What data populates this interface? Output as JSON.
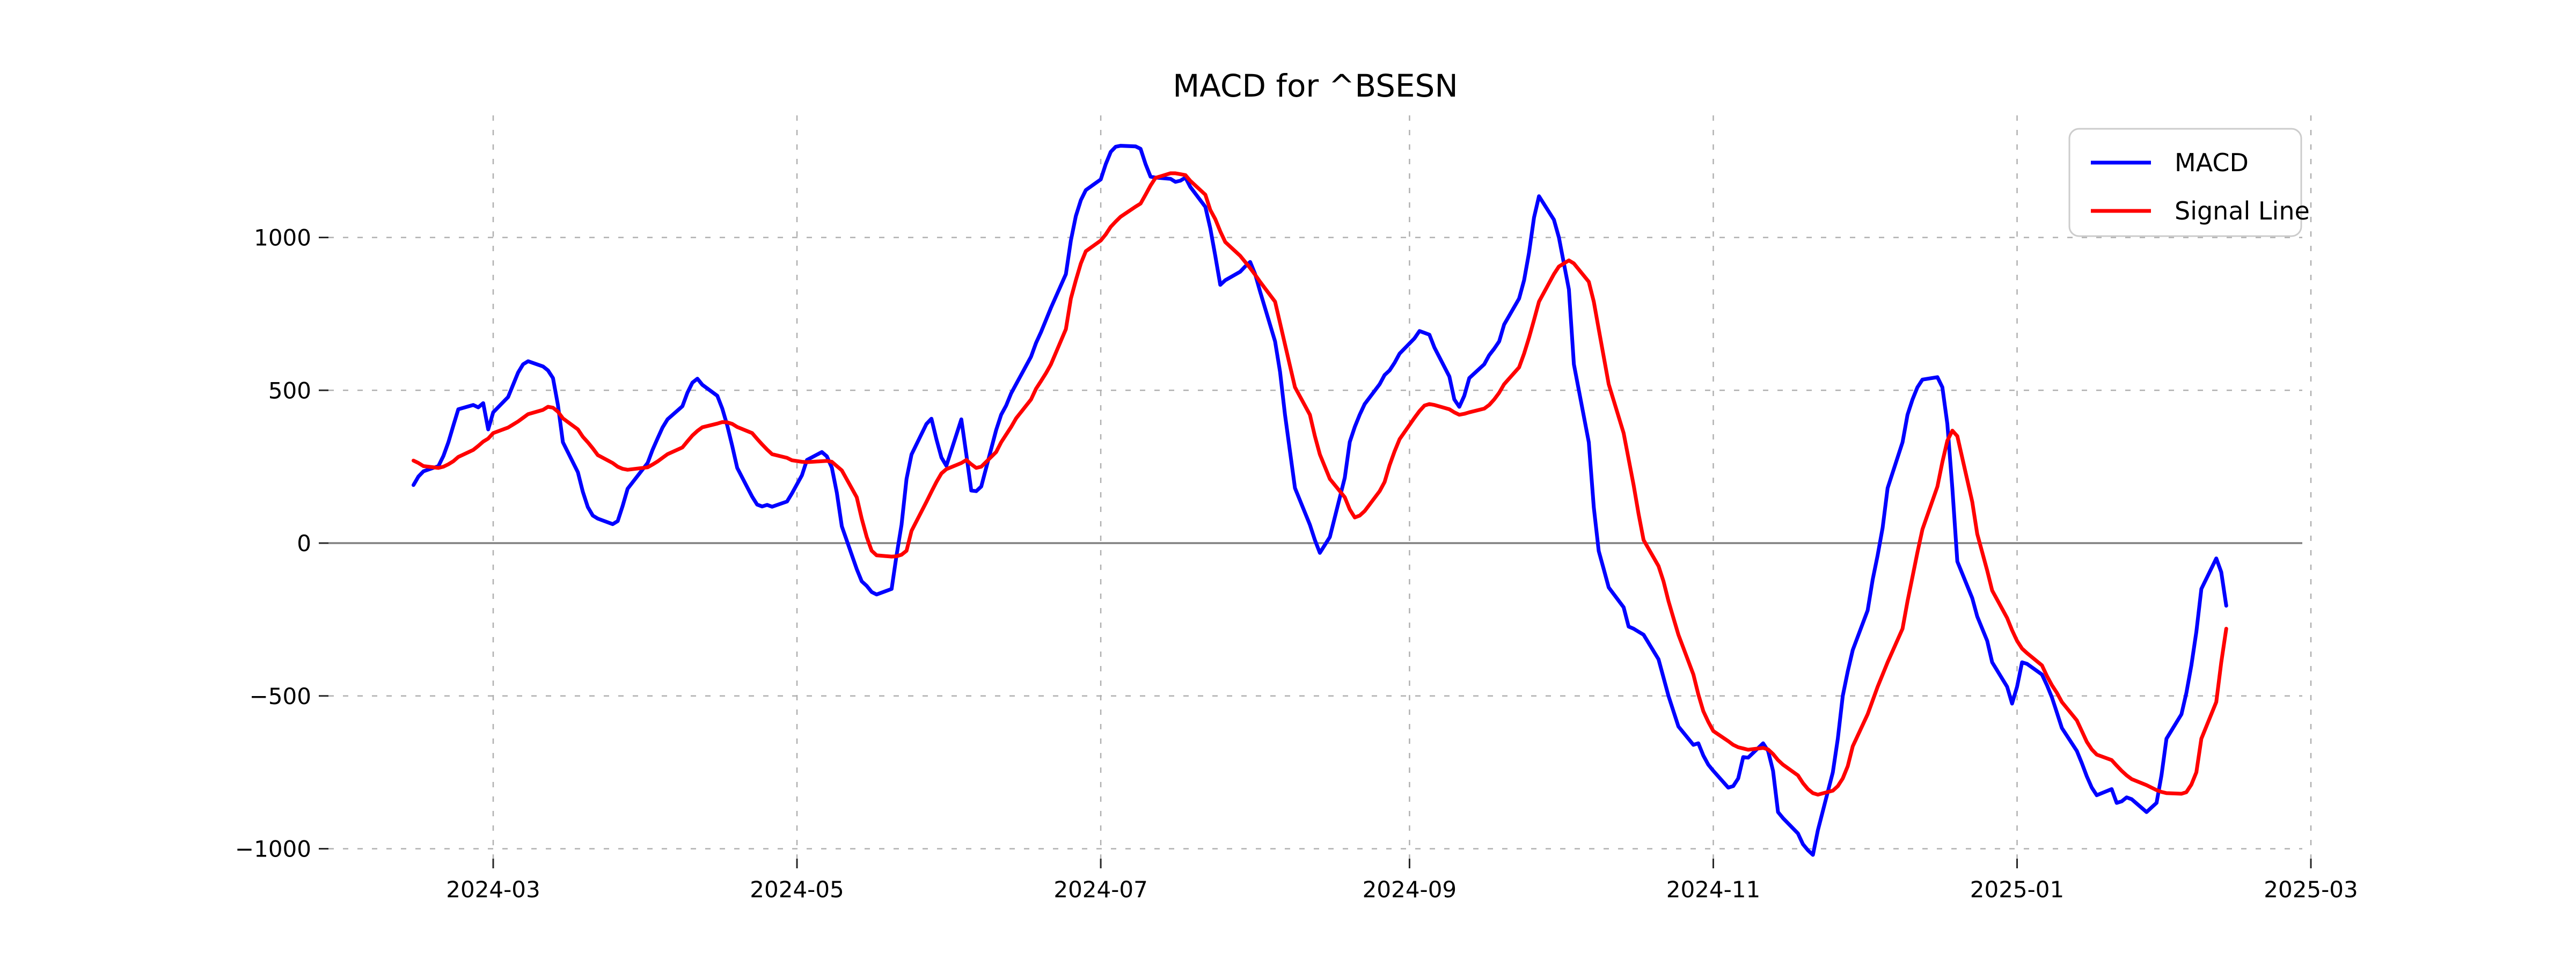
{
  "chart_data": {
    "type": "line",
    "title": "MACD for ^BSESN",
    "xlabel": "",
    "ylabel": "",
    "grid": true,
    "grid_style": "dashed",
    "zero_line": true,
    "x_axis": {
      "tick_labels": [
        "2024-03",
        "2024-05",
        "2024-07",
        "2024-09",
        "2024-11",
        "2025-01",
        "2025-03"
      ],
      "tick_dates": [
        "2024-03-01",
        "2024-05-01",
        "2024-07-01",
        "2024-09-01",
        "2024-11-01",
        "2025-01-01",
        "2025-03-01"
      ],
      "range_dates": [
        "2024-01-28",
        "2025-03-17"
      ]
    },
    "y_axis": {
      "tick_labels": [
        "1000",
        "500",
        "0",
        "−500",
        "−1000"
      ],
      "tick_values": [
        1000,
        500,
        0,
        -500,
        -1000
      ],
      "ylim": [
        -1050,
        1400
      ]
    },
    "legend": {
      "position": "upper right",
      "entries": [
        {
          "label": "MACD",
          "color": "#0000ff"
        },
        {
          "label": "Signal Line",
          "color": "#ff0000"
        }
      ]
    },
    "colors": {
      "macd": "#0000ff",
      "signal": "#ff0000",
      "grid": "#b0b0b0",
      "zero_line": "#808080",
      "tick": "#262626",
      "text": "#000000",
      "legend_border": "#cccccc",
      "background": "#ffffff"
    },
    "series_names": [
      "MACD",
      "Signal Line"
    ],
    "data_columns": [
      "date",
      "MACD",
      "Signal Line"
    ],
    "data": [
      [
        "2024-02-14",
        190,
        270
      ],
      [
        "2024-02-15",
        218,
        262
      ],
      [
        "2024-02-16",
        235,
        252
      ],
      [
        "2024-02-19",
        252,
        246
      ],
      [
        "2024-02-20",
        285,
        250
      ],
      [
        "2024-02-21",
        330,
        258
      ],
      [
        "2024-02-22",
        385,
        268
      ],
      [
        "2024-02-23",
        438,
        282
      ],
      [
        "2024-02-26",
        452,
        305
      ],
      [
        "2024-02-27",
        444,
        318
      ],
      [
        "2024-02-28",
        458,
        332
      ],
      [
        "2024-02-29",
        372,
        342
      ],
      [
        "2024-03-01",
        428,
        360
      ],
      [
        "2024-03-04",
        478,
        378
      ],
      [
        "2024-03-05",
        518,
        388
      ],
      [
        "2024-03-06",
        558,
        398
      ],
      [
        "2024-03-07",
        585,
        410
      ],
      [
        "2024-03-08",
        595,
        422
      ],
      [
        "2024-03-11",
        578,
        436
      ],
      [
        "2024-03-12",
        565,
        446
      ],
      [
        "2024-03-13",
        540,
        443
      ],
      [
        "2024-03-14",
        452,
        430
      ],
      [
        "2024-03-15",
        330,
        408
      ],
      [
        "2024-03-18",
        232,
        372
      ],
      [
        "2024-03-19",
        168,
        348
      ],
      [
        "2024-03-20",
        118,
        330
      ],
      [
        "2024-03-21",
        90,
        310
      ],
      [
        "2024-03-22",
        80,
        288
      ],
      [
        "2024-03-25",
        62,
        262
      ],
      [
        "2024-03-26",
        72,
        250
      ],
      [
        "2024-03-27",
        122,
        243
      ],
      [
        "2024-03-28",
        178,
        240
      ],
      [
        "2024-04-01",
        262,
        248
      ],
      [
        "2024-04-02",
        305,
        257
      ],
      [
        "2024-04-03",
        342,
        267
      ],
      [
        "2024-04-04",
        378,
        279
      ],
      [
        "2024-04-05",
        405,
        291
      ],
      [
        "2024-04-08",
        448,
        313
      ],
      [
        "2024-04-09",
        492,
        333
      ],
      [
        "2024-04-10",
        525,
        352
      ],
      [
        "2024-04-11",
        538,
        367
      ],
      [
        "2024-04-12",
        518,
        379
      ],
      [
        "2024-04-15",
        482,
        391
      ],
      [
        "2024-04-16",
        440,
        396
      ],
      [
        "2024-04-17",
        385,
        395
      ],
      [
        "2024-04-18",
        318,
        390
      ],
      [
        "2024-04-19",
        246,
        380
      ],
      [
        "2024-04-22",
        152,
        360
      ],
      [
        "2024-04-23",
        126,
        341
      ],
      [
        "2024-04-24",
        120,
        323
      ],
      [
        "2024-04-25",
        125,
        306
      ],
      [
        "2024-04-26",
        119,
        291
      ],
      [
        "2024-04-29",
        136,
        279
      ],
      [
        "2024-04-30",
        163,
        271
      ],
      [
        "2024-05-02",
        222,
        266
      ],
      [
        "2024-05-03",
        272,
        265
      ],
      [
        "2024-05-06",
        298,
        268
      ],
      [
        "2024-05-07",
        284,
        269
      ],
      [
        "2024-05-08",
        247,
        266
      ],
      [
        "2024-05-09",
        165,
        252
      ],
      [
        "2024-05-10",
        55,
        238
      ],
      [
        "2024-05-13",
        -85,
        150
      ],
      [
        "2024-05-14",
        -125,
        80
      ],
      [
        "2024-05-15",
        -140,
        20
      ],
      [
        "2024-05-16",
        -160,
        -25
      ],
      [
        "2024-05-17",
        -168,
        -40
      ],
      [
        "2024-05-20",
        -150,
        -44
      ],
      [
        "2024-05-21",
        -40,
        -43
      ],
      [
        "2024-05-22",
        60,
        -38
      ],
      [
        "2024-05-23",
        210,
        -25
      ],
      [
        "2024-05-24",
        290,
        40
      ],
      [
        "2024-05-27",
        390,
        135
      ],
      [
        "2024-05-28",
        407,
        168
      ],
      [
        "2024-05-29",
        340,
        200
      ],
      [
        "2024-05-30",
        280,
        228
      ],
      [
        "2024-05-31",
        253,
        242
      ],
      [
        "2024-06-03",
        405,
        262
      ],
      [
        "2024-06-04",
        290,
        272
      ],
      [
        "2024-06-05",
        172,
        258
      ],
      [
        "2024-06-06",
        170,
        246
      ],
      [
        "2024-06-07",
        185,
        250
      ],
      [
        "2024-06-10",
        370,
        298
      ],
      [
        "2024-06-11",
        420,
        330
      ],
      [
        "2024-06-12",
        450,
        355
      ],
      [
        "2024-06-13",
        490,
        380
      ],
      [
        "2024-06-14",
        520,
        408
      ],
      [
        "2024-06-17",
        610,
        470
      ],
      [
        "2024-06-18",
        655,
        505
      ],
      [
        "2024-06-19",
        690,
        530
      ],
      [
        "2024-06-20",
        730,
        556
      ],
      [
        "2024-06-21",
        770,
        585
      ],
      [
        "2024-06-24",
        880,
        700
      ],
      [
        "2024-06-25",
        990,
        800
      ],
      [
        "2024-06-26",
        1070,
        860
      ],
      [
        "2024-06-27",
        1122,
        915
      ],
      [
        "2024-06-28",
        1155,
        955
      ],
      [
        "2024-07-01",
        1190,
        990
      ],
      [
        "2024-07-02",
        1240,
        1010
      ],
      [
        "2024-07-03",
        1280,
        1035
      ],
      [
        "2024-07-04",
        1297,
        1052
      ],
      [
        "2024-07-05",
        1300,
        1068
      ],
      [
        "2024-07-08",
        1298,
        1101
      ],
      [
        "2024-07-09",
        1290,
        1111
      ],
      [
        "2024-07-10",
        1240,
        1140
      ],
      [
        "2024-07-11",
        1199,
        1170
      ],
      [
        "2024-07-12",
        1196,
        1195
      ],
      [
        "2024-07-15",
        1192,
        1210
      ],
      [
        "2024-07-16",
        1182,
        1210
      ],
      [
        "2024-07-17",
        1186,
        1207
      ],
      [
        "2024-07-18",
        1196,
        1204
      ],
      [
        "2024-07-19",
        1165,
        1185
      ],
      [
        "2024-07-22",
        1100,
        1140
      ],
      [
        "2024-07-23",
        1030,
        1090
      ],
      [
        "2024-07-24",
        940,
        1060
      ],
      [
        "2024-07-25",
        845,
        1020
      ],
      [
        "2024-07-26",
        860,
        985
      ],
      [
        "2024-07-29",
        888,
        940
      ],
      [
        "2024-07-30",
        905,
        920
      ],
      [
        "2024-07-31",
        920,
        900
      ],
      [
        "2024-08-01",
        880,
        878
      ],
      [
        "2024-08-02",
        823,
        855
      ],
      [
        "2024-08-05",
        660,
        790
      ],
      [
        "2024-08-06",
        560,
        720
      ],
      [
        "2024-08-07",
        420,
        650
      ],
      [
        "2024-08-08",
        300,
        580
      ],
      [
        "2024-08-09",
        180,
        510
      ],
      [
        "2024-08-12",
        60,
        420
      ],
      [
        "2024-08-13",
        10,
        350
      ],
      [
        "2024-08-14",
        -32,
        290
      ],
      [
        "2024-08-16",
        20,
        210
      ],
      [
        "2024-08-19",
        214,
        150
      ],
      [
        "2024-08-20",
        331,
        110
      ],
      [
        "2024-08-21",
        380,
        84
      ],
      [
        "2024-08-22",
        420,
        90
      ],
      [
        "2024-08-23",
        455,
        105
      ],
      [
        "2024-08-26",
        520,
        170
      ],
      [
        "2024-08-27",
        550,
        200
      ],
      [
        "2024-08-28",
        565,
        255
      ],
      [
        "2024-08-29",
        590,
        300
      ],
      [
        "2024-08-30",
        620,
        340
      ],
      [
        "2024-09-02",
        670,
        410
      ],
      [
        "2024-09-03",
        694,
        432
      ],
      [
        "2024-09-04",
        688,
        450
      ],
      [
        "2024-09-05",
        682,
        455
      ],
      [
        "2024-09-06",
        640,
        452
      ],
      [
        "2024-09-09",
        545,
        438
      ],
      [
        "2024-09-10",
        470,
        428
      ],
      [
        "2024-09-11",
        446,
        420
      ],
      [
        "2024-09-12",
        482,
        423
      ],
      [
        "2024-09-13",
        540,
        428
      ],
      [
        "2024-09-16",
        585,
        440
      ],
      [
        "2024-09-17",
        615,
        452
      ],
      [
        "2024-09-18",
        636,
        470
      ],
      [
        "2024-09-19",
        660,
        492
      ],
      [
        "2024-09-20",
        715,
        520
      ],
      [
        "2024-09-23",
        800,
        575
      ],
      [
        "2024-09-24",
        860,
        620
      ],
      [
        "2024-09-25",
        950,
        672
      ],
      [
        "2024-09-26",
        1065,
        730
      ],
      [
        "2024-09-27",
        1135,
        790
      ],
      [
        "2024-09-30",
        1058,
        880
      ],
      [
        "2024-10-01",
        1000,
        905
      ],
      [
        "2024-10-03",
        830,
        925
      ],
      [
        "2024-10-04",
        585,
        915
      ],
      [
        "2024-10-07",
        330,
        855
      ],
      [
        "2024-10-08",
        117,
        790
      ],
      [
        "2024-10-09",
        -26,
        700
      ],
      [
        "2024-10-10",
        -85,
        610
      ],
      [
        "2024-10-11",
        -145,
        520
      ],
      [
        "2024-10-14",
        -210,
        360
      ],
      [
        "2024-10-15",
        -273,
        275
      ],
      [
        "2024-10-16",
        -280,
        190
      ],
      [
        "2024-10-17",
        -290,
        95
      ],
      [
        "2024-10-18",
        -300,
        10
      ],
      [
        "2024-10-21",
        -380,
        -75
      ],
      [
        "2024-10-22",
        -440,
        -125
      ],
      [
        "2024-10-23",
        -500,
        -190
      ],
      [
        "2024-10-24",
        -550,
        -245
      ],
      [
        "2024-10-25",
        -600,
        -300
      ],
      [
        "2024-10-28",
        -660,
        -430
      ],
      [
        "2024-10-29",
        -655,
        -495
      ],
      [
        "2024-10-30",
        -695,
        -550
      ],
      [
        "2024-10-31",
        -725,
        -585
      ],
      [
        "2024-11-01",
        -745,
        -615
      ],
      [
        "2024-11-04",
        -800,
        -648
      ],
      [
        "2024-11-05",
        -795,
        -660
      ],
      [
        "2024-11-06",
        -770,
        -668
      ],
      [
        "2024-11-07",
        -700,
        -672
      ],
      [
        "2024-11-08",
        -702,
        -676
      ],
      [
        "2024-11-11",
        -655,
        -670
      ],
      [
        "2024-11-12",
        -680,
        -675
      ],
      [
        "2024-11-13",
        -745,
        -690
      ],
      [
        "2024-11-14",
        -880,
        -710
      ],
      [
        "2024-11-15",
        -900,
        -725
      ],
      [
        "2024-11-18",
        -950,
        -760
      ],
      [
        "2024-11-19",
        -985,
        -785
      ],
      [
        "2024-11-20",
        -1005,
        -805
      ],
      [
        "2024-11-21",
        -1020,
        -818
      ],
      [
        "2024-11-22",
        -940,
        -823
      ],
      [
        "2024-11-25",
        -750,
        -810
      ],
      [
        "2024-11-26",
        -640,
        -795
      ],
      [
        "2024-11-27",
        -500,
        -770
      ],
      [
        "2024-11-28",
        -420,
        -730
      ],
      [
        "2024-11-29",
        -350,
        -665
      ],
      [
        "2024-12-02",
        -220,
        -560
      ],
      [
        "2024-12-03",
        -120,
        -515
      ],
      [
        "2024-12-04",
        -40,
        -470
      ],
      [
        "2024-12-05",
        50,
        -430
      ],
      [
        "2024-12-06",
        180,
        -390
      ],
      [
        "2024-12-09",
        330,
        -280
      ],
      [
        "2024-12-10",
        420,
        -190
      ],
      [
        "2024-12-11",
        470,
        -110
      ],
      [
        "2024-12-12",
        510,
        -30
      ],
      [
        "2024-12-13",
        535,
        45
      ],
      [
        "2024-12-16",
        543,
        185
      ],
      [
        "2024-12-17",
        510,
        265
      ],
      [
        "2024-12-18",
        390,
        335
      ],
      [
        "2024-12-19",
        180,
        368
      ],
      [
        "2024-12-20",
        -60,
        350
      ],
      [
        "2024-12-23",
        -180,
        135
      ],
      [
        "2024-12-24",
        -240,
        30
      ],
      [
        "2024-12-26",
        -320,
        -90
      ],
      [
        "2024-12-27",
        -390,
        -155
      ],
      [
        "2024-12-30",
        -470,
        -245
      ],
      [
        "2024-12-31",
        -525,
        -285
      ],
      [
        "2025-01-01",
        -470,
        -320
      ],
      [
        "2025-01-02",
        -390,
        -345
      ],
      [
        "2025-01-03",
        -395,
        -360
      ],
      [
        "2025-01-06",
        -430,
        -400
      ],
      [
        "2025-01-07",
        -465,
        -435
      ],
      [
        "2025-01-08",
        -505,
        -465
      ],
      [
        "2025-01-09",
        -555,
        -490
      ],
      [
        "2025-01-10",
        -605,
        -520
      ],
      [
        "2025-01-13",
        -680,
        -580
      ],
      [
        "2025-01-14",
        -720,
        -615
      ],
      [
        "2025-01-15",
        -763,
        -650
      ],
      [
        "2025-01-16",
        -800,
        -675
      ],
      [
        "2025-01-17",
        -825,
        -692
      ],
      [
        "2025-01-20",
        -805,
        -710
      ],
      [
        "2025-01-21",
        -850,
        -728
      ],
      [
        "2025-01-22",
        -845,
        -745
      ],
      [
        "2025-01-23",
        -832,
        -760
      ],
      [
        "2025-01-24",
        -838,
        -772
      ],
      [
        "2025-01-27",
        -880,
        -792
      ],
      [
        "2025-01-28",
        -865,
        -800
      ],
      [
        "2025-01-29",
        -850,
        -808
      ],
      [
        "2025-01-30",
        -760,
        -814
      ],
      [
        "2025-01-31",
        -640,
        -818
      ],
      [
        "2025-02-03",
        -560,
        -820
      ],
      [
        "2025-02-04",
        -490,
        -815
      ],
      [
        "2025-02-05",
        -400,
        -790
      ],
      [
        "2025-02-06",
        -290,
        -750
      ],
      [
        "2025-02-07",
        -150,
        -640
      ],
      [
        "2025-02-10",
        -50,
        -520
      ],
      [
        "2025-02-11",
        -95,
        -390
      ],
      [
        "2025-02-12",
        -205,
        -280
      ]
    ]
  }
}
